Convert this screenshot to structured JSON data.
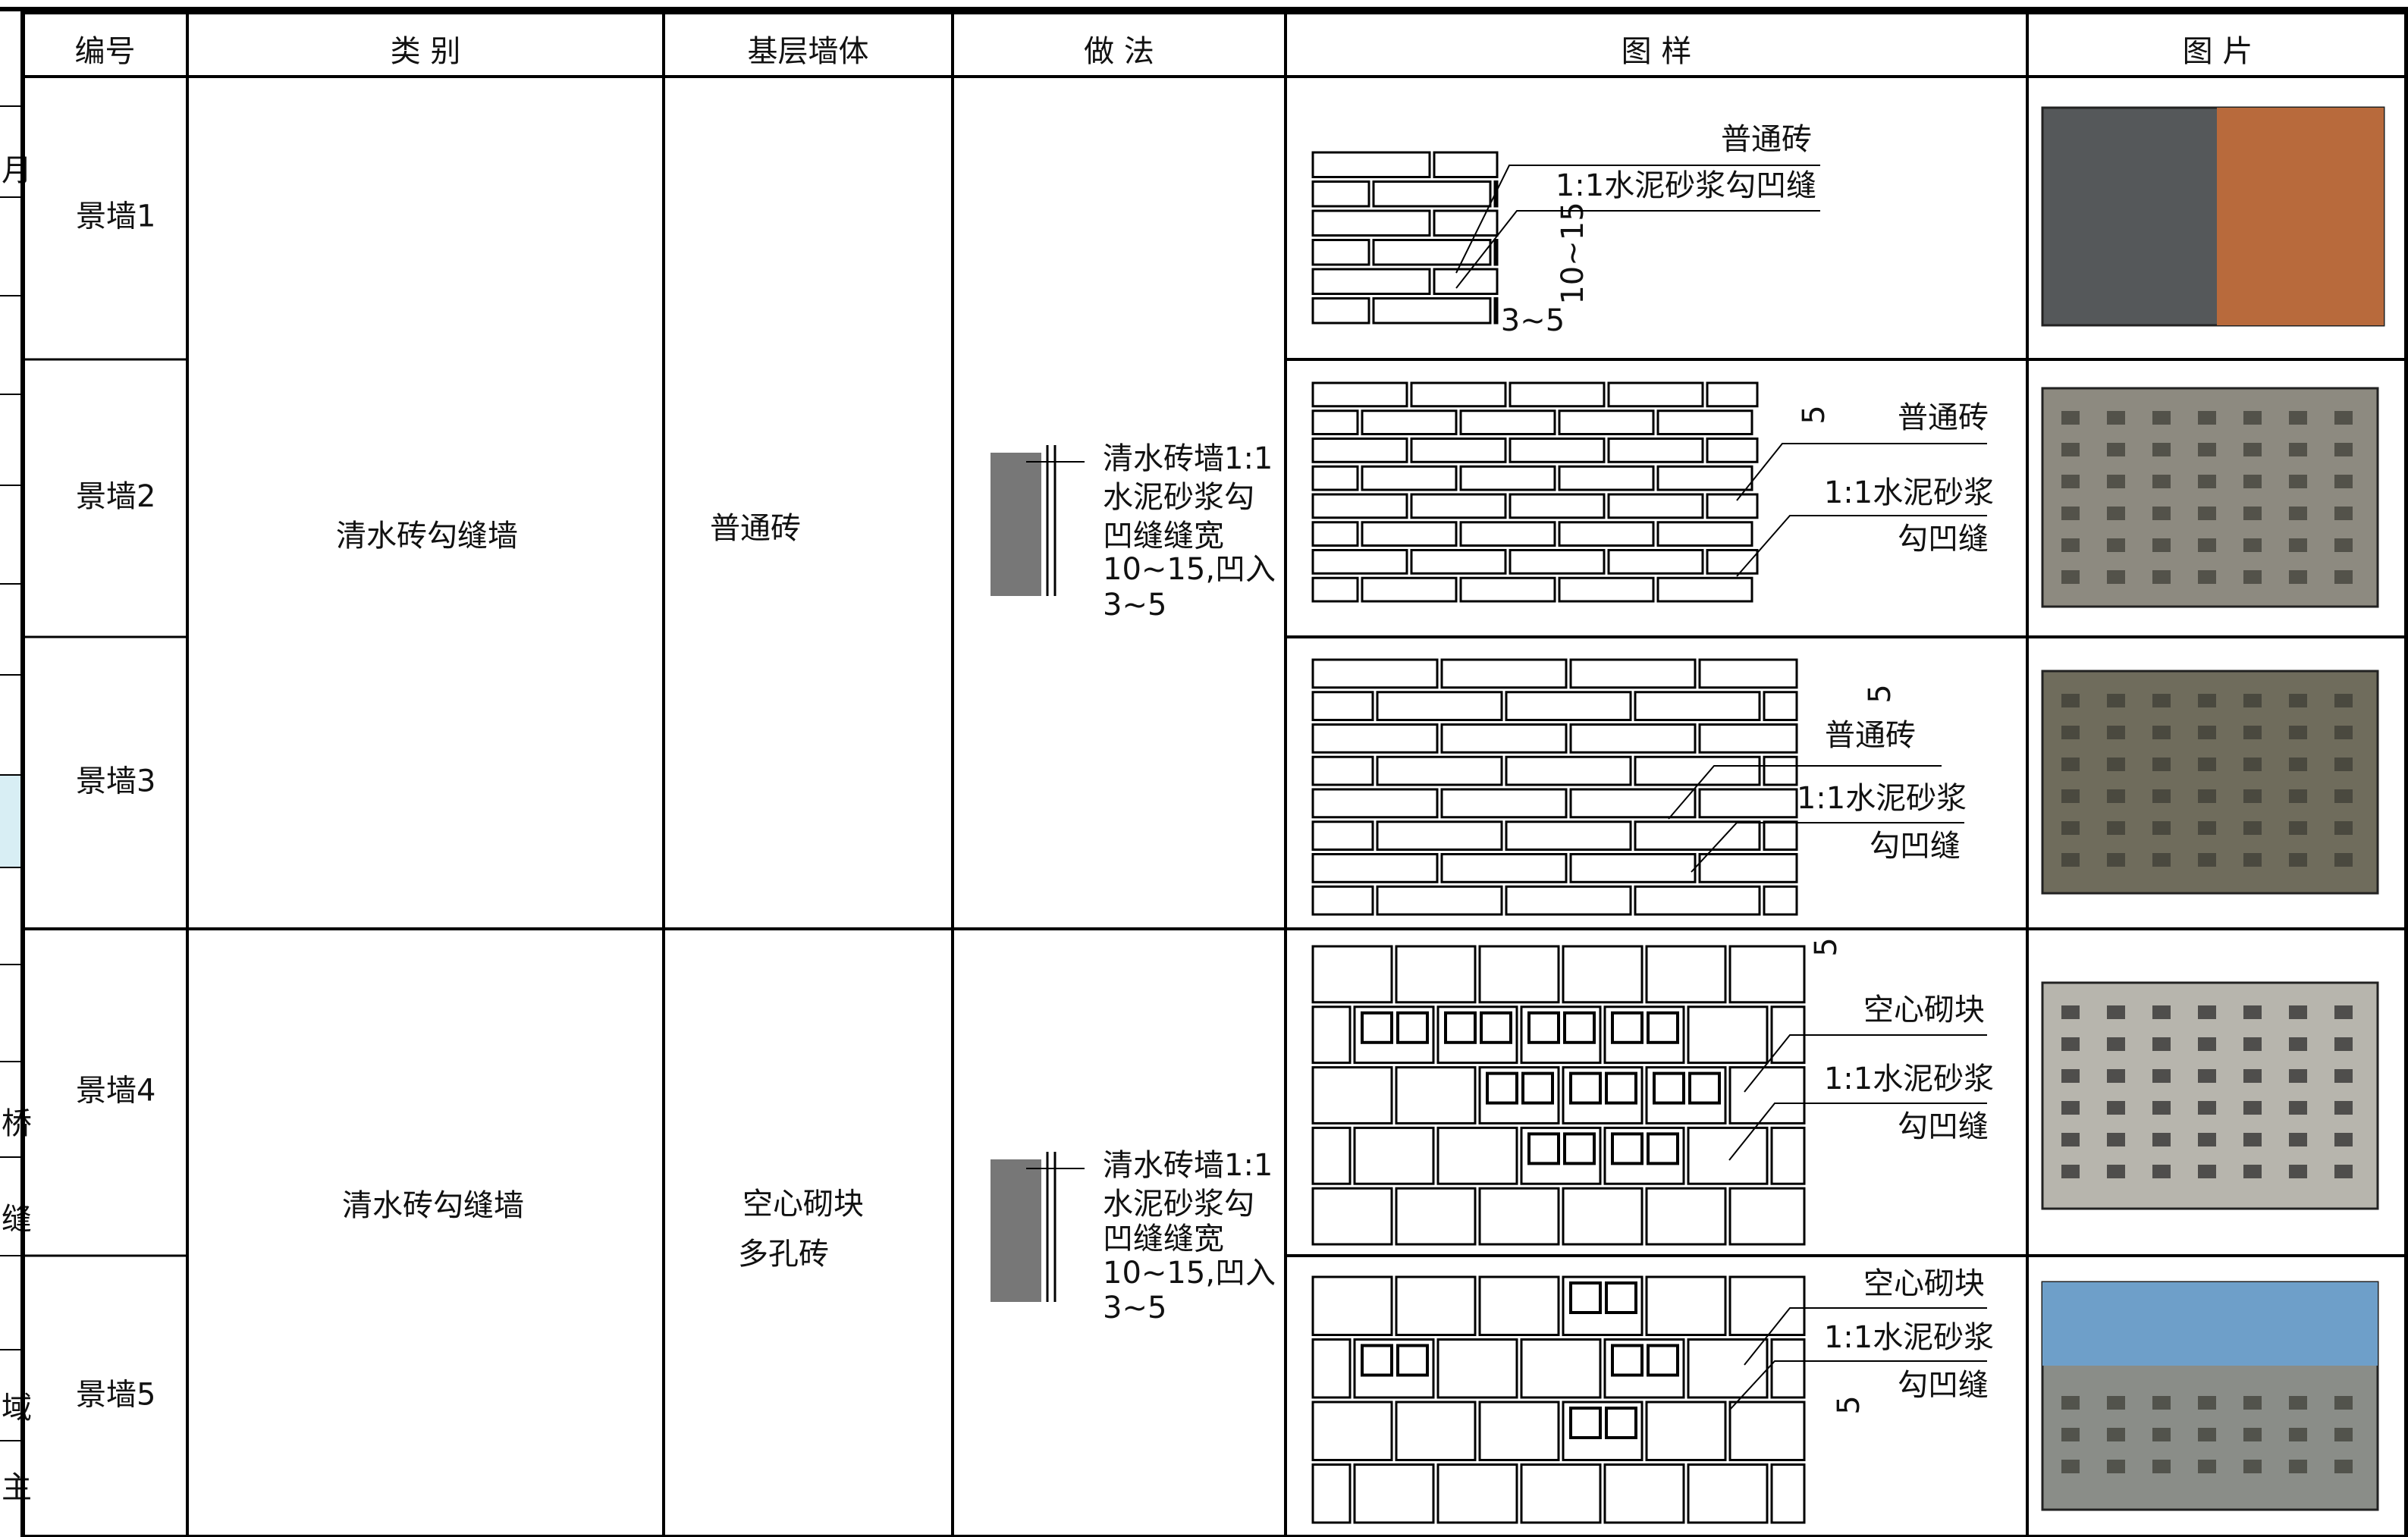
{
  "header": [
    "编号",
    "类 别",
    "基层墙体",
    "做 法",
    "图 样",
    "图 片"
  ],
  "rows": [
    {
      "id": "景墙1",
      "drawing_labels": [
        "普通砖",
        "1:1水泥砂浆勾凹缝",
        "10~15",
        "3~5"
      ]
    },
    {
      "id": "景墙2",
      "drawing_labels": [
        "5",
        "普通砖",
        "1:1水泥砂浆",
        "勾凹缝"
      ]
    },
    {
      "id": "景墙3",
      "drawing_labels": [
        "5",
        "普通砖",
        "1:1水泥砂浆",
        "勾凹缝"
      ]
    },
    {
      "id": "景墙4",
      "drawing_labels": [
        "5",
        "空心砌块",
        "1:1水泥砂浆",
        "勾凹缝"
      ]
    },
    {
      "id": "景墙5",
      "drawing_labels": [
        "空心砌块",
        "1:1水泥砂浆",
        "勾凹缝",
        "5"
      ]
    }
  ],
  "groups": [
    {
      "category": "清水砖勾缝墙",
      "base_wall": [
        "普通砖"
      ],
      "method": [
        "清水砖墙1:1",
        "水泥砂浆勾",
        "凹缝缝宽",
        "10~15,凹入",
        "3~5"
      ]
    },
    {
      "category": "清水砖勾缝墙",
      "base_wall": [
        "空心砌块",
        "多孔砖"
      ],
      "method": [
        "清水砖墙1:1",
        "水泥砂浆勾",
        "凹缝缝宽",
        "10~15,凹入",
        "3~5"
      ]
    }
  ],
  "side_tabs": [
    "月",
    "桥",
    "缝",
    "域",
    "主"
  ]
}
